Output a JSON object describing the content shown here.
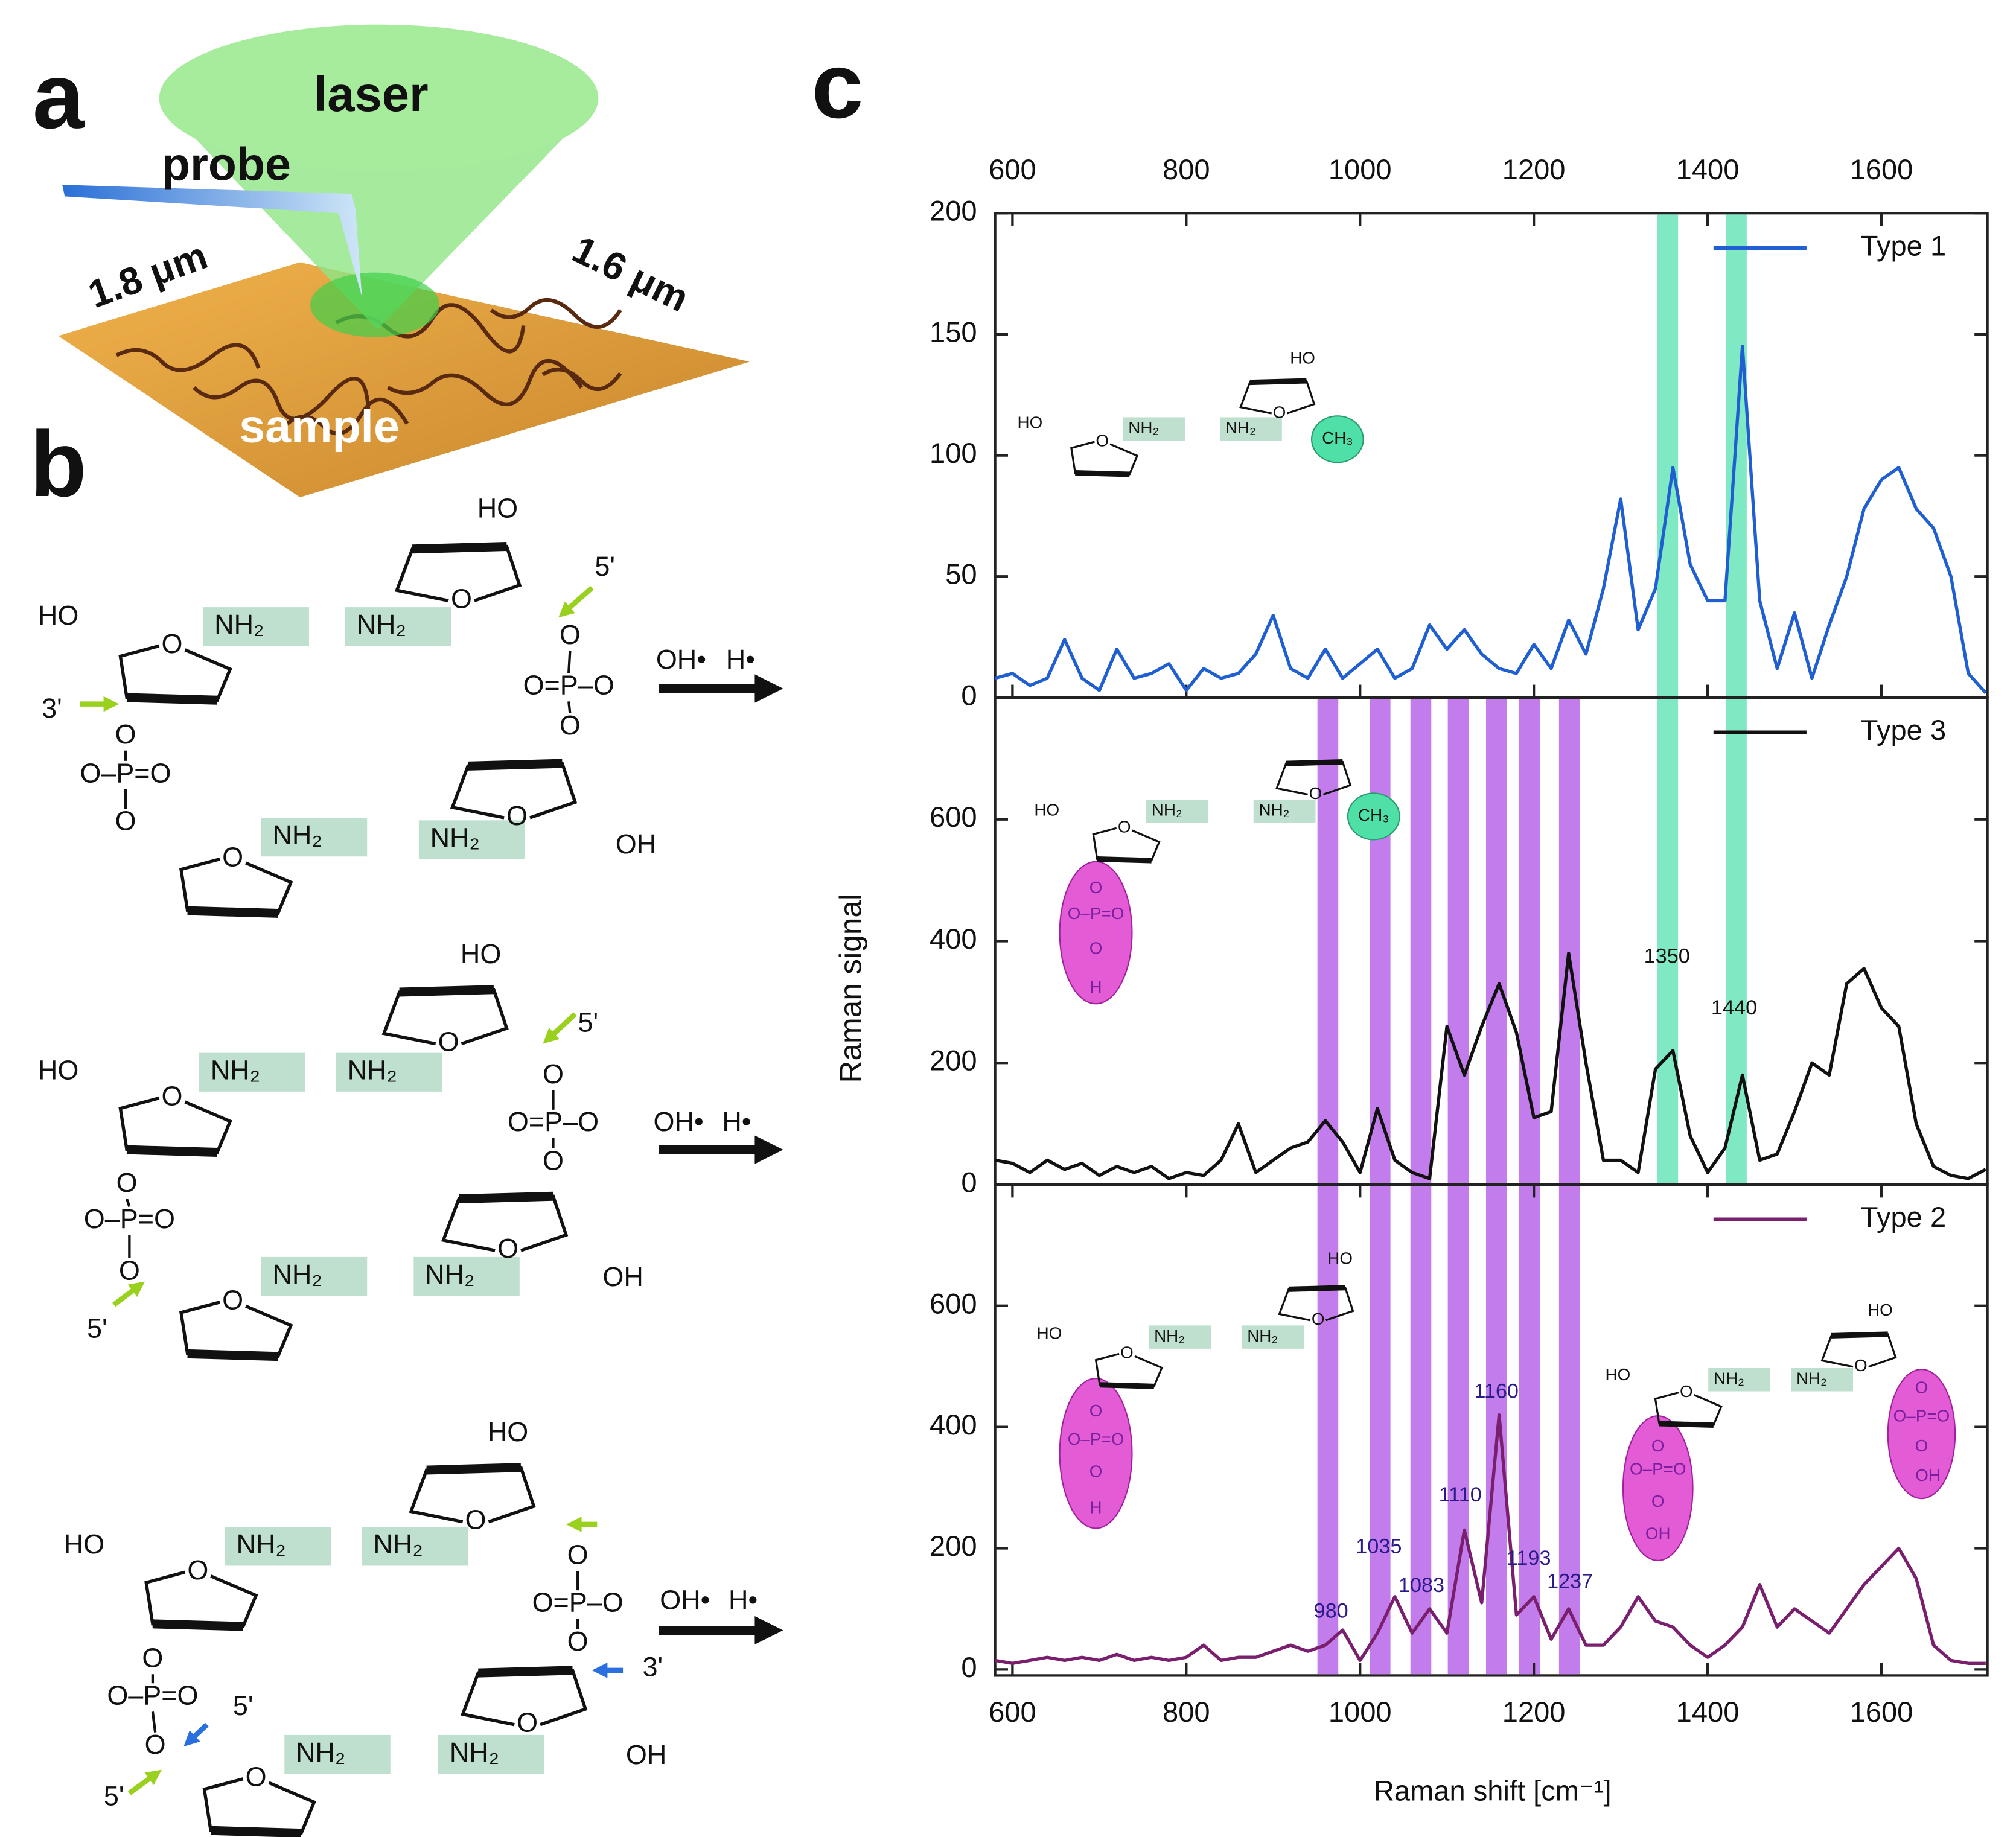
{
  "panel_a": {
    "label": "a",
    "texts": [
      "laser",
      "probe",
      "1.8 μm",
      "1.6 μm",
      "sample"
    ]
  },
  "panel_b": {
    "label": "b",
    "molecules": [
      {
        "labels": [
          "HO",
          "O",
          "NH₂",
          "NH₂",
          "HO",
          "O",
          "5'",
          "O",
          "O=P–O",
          "O",
          "O",
          "NH₂",
          "OH",
          "NH₂",
          "O",
          "O",
          "O–P=O",
          "O",
          "3'",
          "OH•",
          "H•"
        ]
      },
      {
        "labels": [
          "HO",
          "O",
          "NH₂",
          "NH₂",
          "HO",
          "O",
          "5'",
          "O",
          "O=P–O",
          "O",
          "O",
          "NH₂",
          "OH",
          "NH₂",
          "O",
          "O",
          "O–P=O",
          "O",
          "5'",
          "OH•",
          "H•"
        ]
      },
      {
        "labels": [
          "HO",
          "O",
          "NH₂",
          "NH₂",
          "HO",
          "O",
          "O",
          "O=P–O",
          "O",
          "3'",
          "O",
          "NH₂",
          "OH",
          "NH₂",
          "O",
          "O",
          "5'",
          "5'",
          "O–P=O",
          "O",
          "OH•",
          "H•"
        ]
      }
    ]
  },
  "panel_c": {
    "label": "c"
  },
  "chart_data": [
    {
      "type": "line",
      "xlim": [
        580,
        1722
      ],
      "xticks": [
        600,
        800,
        1000,
        1200,
        1400,
        1600
      ],
      "ylim": [
        0,
        200
      ],
      "yticks": [
        0,
        50,
        100,
        150,
        200
      ],
      "legend": "upper right",
      "x": [
        580,
        600,
        620,
        640,
        660,
        680,
        700,
        720,
        740,
        760,
        780,
        800,
        820,
        840,
        860,
        880,
        900,
        920,
        940,
        960,
        980,
        1000,
        1020,
        1040,
        1060,
        1080,
        1100,
        1120,
        1140,
        1160,
        1180,
        1200,
        1220,
        1240,
        1260,
        1280,
        1300,
        1320,
        1340,
        1360,
        1380,
        1400,
        1420,
        1440,
        1460,
        1480,
        1500,
        1520,
        1540,
        1560,
        1580,
        1600,
        1620,
        1640,
        1660,
        1680,
        1700,
        1720
      ],
      "series": [
        {
          "name": "Type 1",
          "color": "#1f5fd1",
          "values": [
            8,
            10,
            5,
            8,
            24,
            8,
            3,
            20,
            8,
            10,
            14,
            3,
            12,
            8,
            10,
            18,
            34,
            12,
            8,
            20,
            8,
            14,
            20,
            8,
            12,
            30,
            20,
            28,
            18,
            12,
            10,
            22,
            12,
            32,
            18,
            45,
            82,
            28,
            45,
            95,
            55,
            40,
            40,
            145,
            40,
            12,
            35,
            8,
            30,
            50,
            78,
            90,
            95,
            78,
            70,
            50,
            10,
            2
          ]
        }
      ],
      "bands": [
        {
          "color": "#5fe3b4",
          "width": 24,
          "centers": [
            1354,
            1433
          ]
        }
      ],
      "inset_labels": [
        "HO",
        "O",
        "NH₂",
        "NH₂",
        "HO",
        "O",
        "CH₃"
      ]
    },
    {
      "type": "line",
      "xlim": [
        580,
        1722
      ],
      "ylim": [
        0,
        800
      ],
      "yticks": [
        0,
        200,
        400,
        600
      ],
      "legend": "upper right",
      "ylabel": "Raman signal",
      "x": [
        580,
        600,
        620,
        640,
        660,
        680,
        700,
        720,
        740,
        760,
        780,
        800,
        820,
        840,
        860,
        880,
        900,
        920,
        940,
        960,
        980,
        1000,
        1020,
        1040,
        1060,
        1080,
        1100,
        1120,
        1140,
        1160,
        1180,
        1200,
        1220,
        1240,
        1260,
        1280,
        1300,
        1320,
        1340,
        1360,
        1380,
        1400,
        1420,
        1440,
        1460,
        1480,
        1500,
        1520,
        1540,
        1560,
        1580,
        1600,
        1620,
        1640,
        1660,
        1680,
        1700,
        1720
      ],
      "series": [
        {
          "name": "Type 3",
          "color": "#111111",
          "values": [
            40,
            35,
            20,
            40,
            25,
            35,
            15,
            30,
            20,
            30,
            10,
            20,
            15,
            40,
            100,
            20,
            40,
            60,
            70,
            105,
            70,
            20,
            125,
            40,
            20,
            10,
            260,
            180,
            260,
            330,
            250,
            110,
            120,
            380,
            200,
            40,
            40,
            20,
            190,
            220,
            80,
            20,
            60,
            180,
            40,
            50,
            120,
            200,
            180,
            330,
            355,
            290,
            260,
            100,
            30,
            15,
            10,
            25
          ]
        }
      ],
      "bands": [
        {
          "color": "#5fe3b4",
          "width": 24,
          "centers": [
            1354,
            1433
          ]
        },
        {
          "color": "#b45be6",
          "width": 24,
          "centers": [
            963,
            1023,
            1070,
            1113,
            1157,
            1195,
            1241
          ]
        }
      ],
      "peak_labels": [
        "1350",
        "1440"
      ],
      "inset_labels": [
        "HO",
        "O",
        "NH₂",
        "NH₂",
        "O",
        "CH₃",
        "O",
        "O–P=O",
        "O",
        "H"
      ]
    },
    {
      "type": "line",
      "xlim": [
        580,
        1722
      ],
      "xticks": [
        600,
        800,
        1000,
        1200,
        1400,
        1600
      ],
      "ylim": [
        -10,
        800
      ],
      "yticks": [
        0,
        200,
        400,
        600
      ],
      "legend": "upper right",
      "xlabel": "Raman shift [cm⁻¹]",
      "x": [
        580,
        600,
        620,
        640,
        660,
        680,
        700,
        720,
        740,
        760,
        780,
        800,
        820,
        840,
        860,
        880,
        900,
        920,
        940,
        960,
        980,
        1000,
        1020,
        1040,
        1060,
        1080,
        1100,
        1120,
        1140,
        1160,
        1180,
        1200,
        1220,
        1240,
        1260,
        1280,
        1300,
        1320,
        1340,
        1360,
        1380,
        1400,
        1420,
        1440,
        1460,
        1480,
        1500,
        1520,
        1540,
        1560,
        1580,
        1600,
        1620,
        1640,
        1660,
        1680,
        1700,
        1720
      ],
      "series": [
        {
          "name": "Type 2",
          "color": "#7a1f6e",
          "values": [
            15,
            10,
            15,
            20,
            15,
            20,
            15,
            25,
            15,
            20,
            15,
            20,
            40,
            15,
            20,
            20,
            30,
            40,
            30,
            40,
            65,
            15,
            60,
            120,
            60,
            100,
            60,
            230,
            110,
            420,
            90,
            120,
            50,
            100,
            40,
            40,
            70,
            120,
            80,
            70,
            40,
            20,
            40,
            70,
            140,
            70,
            100,
            80,
            60,
            100,
            140,
            170,
            200,
            150,
            40,
            15,
            10,
            10
          ]
        }
      ],
      "bands": [
        {
          "color": "#b45be6",
          "width": 24,
          "centers": [
            963,
            1023,
            1070,
            1113,
            1157,
            1195,
            1241
          ]
        }
      ],
      "peak_labels": [
        "980",
        "1035",
        "1083",
        "1110",
        "1160",
        "1193",
        "1237"
      ],
      "inset_labels": [
        "HO",
        "O",
        "NH₂",
        "NH₂",
        "HO",
        "O",
        "O",
        "O–P=O",
        "O",
        "H",
        "HO",
        "O",
        "NH₂",
        "NH₂",
        "HO",
        "O",
        "O",
        "O–P=O",
        "O",
        "OH",
        "O",
        "O–P=O",
        "O",
        "OH"
      ]
    }
  ]
}
